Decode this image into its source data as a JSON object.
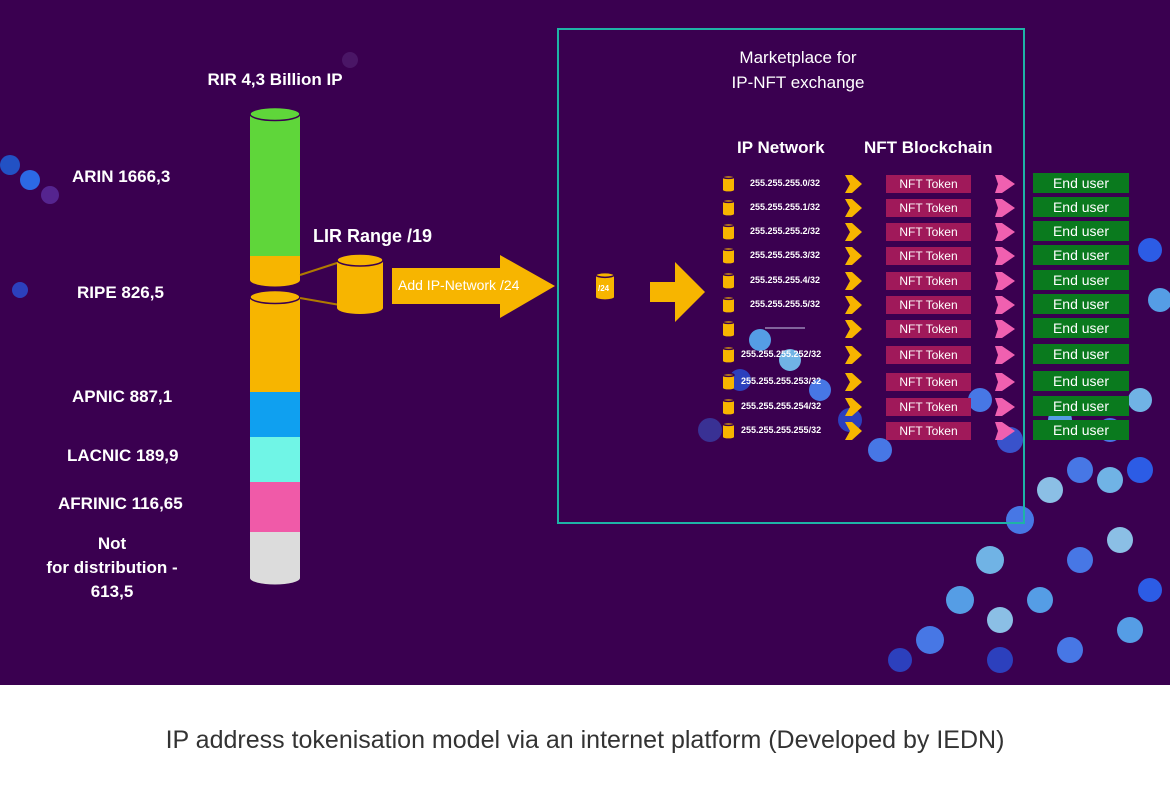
{
  "rir_title": "RIR 4,3 Billion IP",
  "registries": [
    {
      "label": "ARIN 1666,3",
      "color": "#5fd63a"
    },
    {
      "label": "RIPE 826,5",
      "color": "#f7b500"
    },
    {
      "label": "APNIC 887,1",
      "color": "#0fa0f0"
    },
    {
      "label": "LACNIC 189,9",
      "color": "#70f5e6"
    },
    {
      "label": "AFRINIC 116,65",
      "color": "#f05aa8"
    }
  ],
  "not_distributed": {
    "line1": "Not",
    "line2": "for distribution -",
    "line3": "613,5",
    "color": "#dcdcdc"
  },
  "lir_label": "LIR Range /19",
  "arrow_label": "Add IP-Network /24",
  "small_cylinder_label": "/24",
  "marketplace": {
    "title_line1": "Marketplace for",
    "title_line2": "IP-NFT exchange",
    "col_ip": "IP Network",
    "col_nft": "NFT Blockchain"
  },
  "rows": [
    {
      "ip": "255.255.255.0/32",
      "token": "NFT Token",
      "user": "End user"
    },
    {
      "ip": "255.255.255.1/32",
      "token": "NFT Token",
      "user": "End user"
    },
    {
      "ip": "255.255.255.2/32",
      "token": "NFT Token",
      "user": "End user"
    },
    {
      "ip": "255.255.255.3/32",
      "token": "NFT Token",
      "user": "End user"
    },
    {
      "ip": "255.255.255.4/32",
      "token": "NFT Token",
      "user": "End user"
    },
    {
      "ip": "255.255.255.5/32",
      "token": "NFT Token",
      "user": "End user"
    },
    {
      "ip": "",
      "token": "NFT Token",
      "user": "End user"
    },
    {
      "ip": "255.255.255.252/32",
      "token": "NFT Token",
      "user": "End user"
    },
    {
      "ip": "255.255.255.253/32",
      "token": "NFT Token",
      "user": "End user"
    },
    {
      "ip": "255.255.255.254/32",
      "token": "NFT Token",
      "user": "End user"
    },
    {
      "ip": "255.255.255.255/32",
      "token": "NFT Token",
      "user": "End user"
    }
  ],
  "colors": {
    "background": "#3a0050",
    "frame": "#1fb3a6",
    "arrow": "#f7b500",
    "nft": "#a0195a",
    "pink_arrow": "#f060b0",
    "end_user": "#0a7a1e"
  },
  "caption": "IP address  tokenisation model via an internet platform (Developed by IEDN)"
}
